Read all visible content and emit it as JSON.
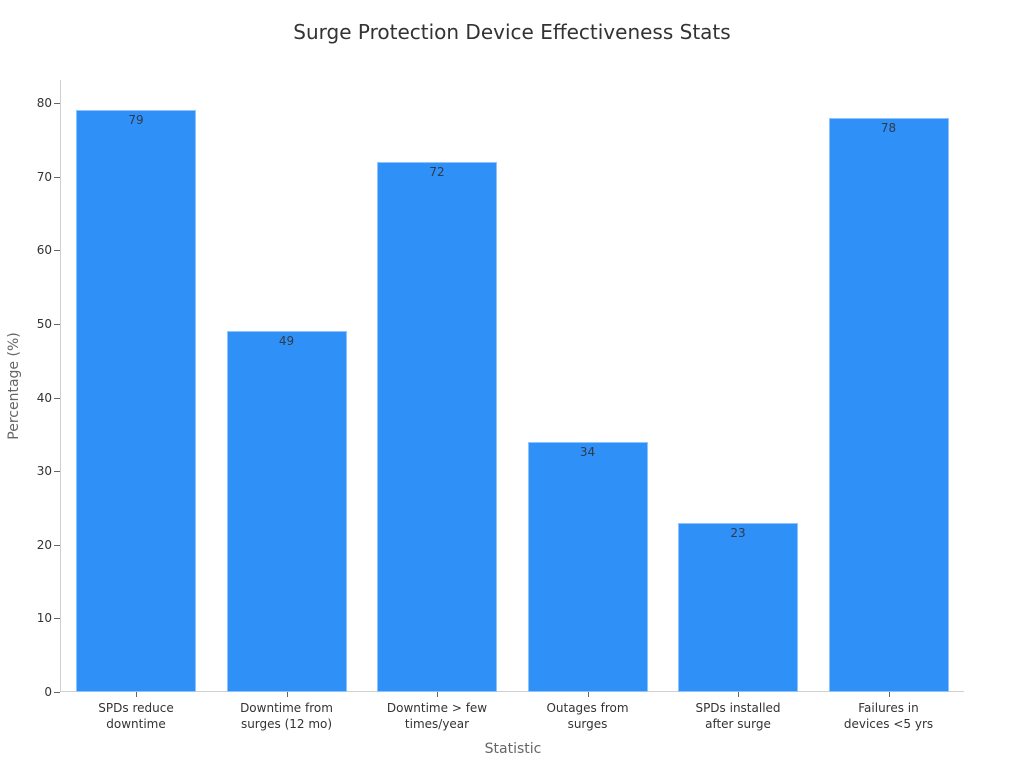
{
  "chart_data": {
    "type": "bar",
    "title": "Surge Protection Device Effectiveness Stats",
    "xlabel": "Statistic",
    "ylabel": "Percentage (%)",
    "categories": [
      "SPDs reduce\ndowntime",
      "Downtime from\nsurges (12 mo)",
      "Downtime > few\ntimes/year",
      "Outages from\nsurges",
      "SPDs installed\nafter surge",
      "Failures in\ndevices <5 yrs"
    ],
    "values": [
      79,
      49,
      72,
      34,
      23,
      78
    ],
    "ylim": [
      0,
      83
    ],
    "yticks": [
      0,
      10,
      20,
      30,
      40,
      50,
      60,
      70,
      80
    ],
    "grid": false,
    "legend": null,
    "data_labels": true,
    "bar_color": "#2f91f8"
  }
}
